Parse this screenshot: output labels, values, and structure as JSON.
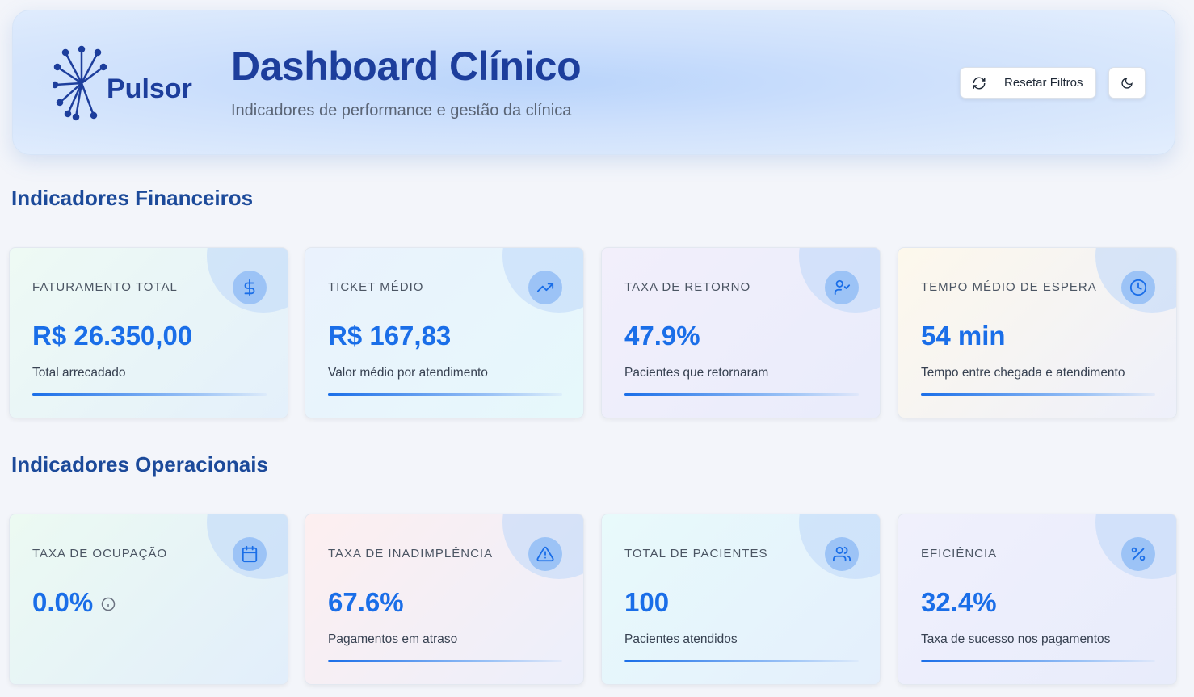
{
  "header": {
    "logo": "Pulsor",
    "title": "Dashboard Clínico",
    "subtitle": "Indicadores de performance e gestão da clínica",
    "buttons": {
      "reset": "Resetar Filtros"
    }
  },
  "sections": [
    {
      "title": "Indicadores Financeiros",
      "cards": [
        {
          "label": "FATURAMENTO TOTAL",
          "value": "R$ 26.350,00",
          "description": "Total arrecadado"
        },
        {
          "label": "TICKET MÉDIO",
          "value": "R$ 167,83",
          "description": "Valor médio por atendimento"
        },
        {
          "label": "TAXA DE RETORNO",
          "value": "47.9%",
          "description": "Pacientes que retornaram"
        },
        {
          "label": "TEMPO MÉDIO DE ESPERA",
          "value": "54 min",
          "description": "Tempo entre chegada e atendimento"
        }
      ]
    },
    {
      "title": "Indicadores Operacionais",
      "cards": [
        {
          "label": "TAXA DE OCUPAÇÃO",
          "value": "0.0%"
        },
        {
          "label": "TAXA DE INADIMPLÊNCIA",
          "value": "67.6%",
          "description": "Pagamentos em atraso"
        },
        {
          "label": "TOTAL DE PACIENTES",
          "value": "100",
          "description": "Pacientes atendidos"
        },
        {
          "label": "EFICIÊNCIA",
          "value": "32.4%",
          "description": "Taxa de sucesso nos pagamentos"
        }
      ]
    }
  ]
}
